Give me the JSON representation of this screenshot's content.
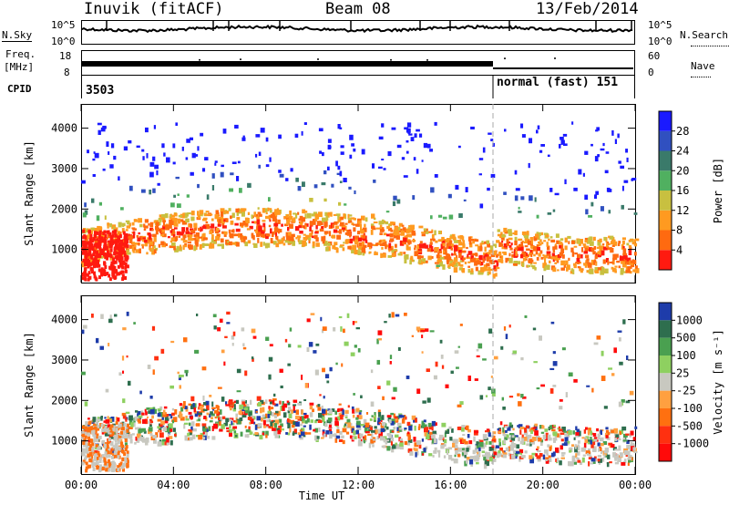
{
  "header": {
    "station": "Inuvik (fitACF)",
    "beam": "Beam 08",
    "date": "13/Feb/2014"
  },
  "strip": {
    "nsky_label": "N.Sky",
    "nsearch_label": "N.Search",
    "noise_top": "10^5",
    "noise_bottom": "10^0",
    "freq_label": "Freq.",
    "freq_unit": "[MHz]",
    "freq_top": "18",
    "freq_bottom": "8",
    "nave_label": "Nave",
    "nave_top": "60",
    "nave_bottom": "0",
    "cpid_label": "CPID",
    "cpid_value_1": "3503",
    "cpid_value_2": "normal (fast) 151"
  },
  "chart_data": [
    {
      "type": "heatmap",
      "panel": "power",
      "ylabel": "Slant Range [km]",
      "xlabel": "",
      "ylim": [
        180,
        4600
      ],
      "yticks": [
        "1000",
        "2000",
        "3000",
        "4000"
      ],
      "xlim": [
        "00:00",
        "24:00"
      ],
      "colorbar": {
        "label": "Power [dB]",
        "ticks": [
          "4",
          "8",
          "12",
          "16",
          "20",
          "24",
          "28"
        ],
        "colors": [
          "#1a1aff",
          "#3050c0",
          "#3a7a6a",
          "#50b060",
          "#c8c040",
          "#ff9a20",
          "#ff6a10",
          "#ff1a10"
        ]
      }
    },
    {
      "type": "heatmap",
      "panel": "velocity",
      "ylabel": "Slant Range [km]",
      "xlabel": "Time UT",
      "ylim": [
        180,
        4600
      ],
      "yticks": [
        "1000",
        "2000",
        "3000",
        "4000"
      ],
      "xticks": [
        "00:00",
        "04:00",
        "08:00",
        "12:00",
        "16:00",
        "20:00",
        "00:00"
      ],
      "colorbar": {
        "label": "Velocity [m s⁻¹]",
        "ticks": [
          "1000",
          "500",
          "100",
          "25",
          "-25",
          "-100",
          "-500",
          "-1000"
        ],
        "colors": [
          "#1e3caa",
          "#2e6e4e",
          "#4aa050",
          "#8ed060",
          "#c8c8c0",
          "#ffa040",
          "#ff7010",
          "#ff3010",
          "#ff0a0a"
        ]
      }
    }
  ]
}
